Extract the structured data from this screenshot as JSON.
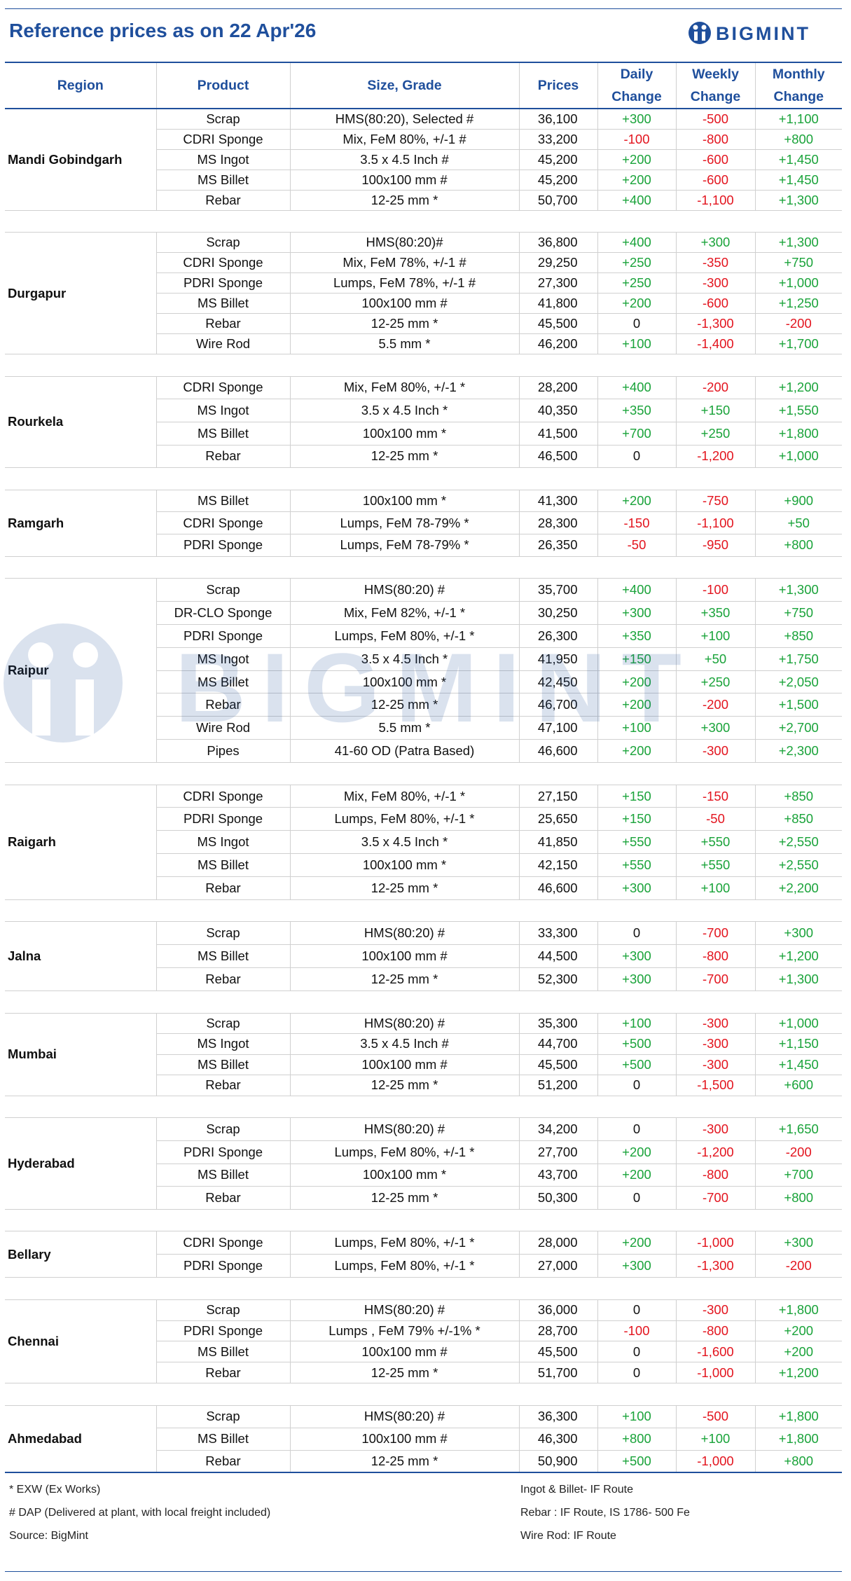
{
  "header": {
    "title": "Reference prices as on 22 Apr'26",
    "logo": "BIGMINT"
  },
  "table": {
    "columns": [
      "Region",
      "Product",
      "Size, Grade",
      "Prices",
      "Daily Change",
      "Weekly Change",
      "Monthly Change"
    ],
    "groups": [
      {
        "region": "Mandi Gobindgarh",
        "rows": [
          [
            "Scrap",
            "HMS(80:20), Selected #",
            "36,100",
            "+300",
            "-500",
            "+1,100"
          ],
          [
            "CDRI Sponge",
            "Mix, FeM 80%, +/-1 #",
            "33,200",
            "-100",
            "-800",
            "+800"
          ],
          [
            "MS Ingot",
            "3.5 x 4.5 Inch #",
            "45,200",
            "+200",
            "-600",
            "+1,450"
          ],
          [
            "MS Billet",
            "100x100 mm #",
            "45,200",
            "+200",
            "-600",
            "+1,450"
          ],
          [
            "Rebar",
            "12-25 mm *",
            "50,700",
            "+400",
            "-1,100",
            "+1,300"
          ]
        ]
      },
      {
        "region": "Durgapur",
        "rows": [
          [
            "Scrap",
            "HMS(80:20)#",
            "36,800",
            "+400",
            "+300",
            "+1,300"
          ],
          [
            "CDRI Sponge",
            "Mix, FeM 78%, +/-1 #",
            "29,250",
            "+250",
            "-350",
            "+750"
          ],
          [
            "PDRI Sponge",
            "Lumps, FeM 78%, +/-1 #",
            "27,300",
            "+250",
            "-300",
            "+1,000"
          ],
          [
            "MS Billet",
            "100x100 mm #",
            "41,800",
            "+200",
            "-600",
            "+1,250"
          ],
          [
            "Rebar",
            "12-25 mm *",
            "45,500",
            "0",
            "-1,300",
            "-200"
          ],
          [
            "Wire Rod",
            "5.5 mm *",
            "46,200",
            "+100",
            "-1,400",
            "+1,700"
          ]
        ]
      },
      {
        "region": "Rourkela",
        "rows": [
          [
            "CDRI Sponge",
            "Mix, FeM 80%, +/-1 *",
            "28,200",
            "+400",
            "-200",
            "+1,200"
          ],
          [
            "MS Ingot",
            "3.5 x 4.5 Inch *",
            "40,350",
            "+350",
            "+150",
            "+1,550"
          ],
          [
            "MS Billet",
            "100x100 mm *",
            "41,500",
            "+700",
            "+250",
            "+1,800"
          ],
          [
            "Rebar",
            "12-25 mm *",
            "46,500",
            "0",
            "-1,200",
            "+1,000"
          ]
        ]
      },
      {
        "region": "Ramgarh",
        "rows": [
          [
            "MS Billet",
            "100x100 mm *",
            "41,300",
            "+200",
            "-750",
            "+900"
          ],
          [
            "CDRI Sponge",
            "Lumps, FeM 78-79% *",
            "28,300",
            "-150",
            "-1,100",
            "+50"
          ],
          [
            "PDRI Sponge",
            "Lumps, FeM 78-79% *",
            "26,350",
            "-50",
            "-950",
            "+800"
          ]
        ]
      },
      {
        "region": "Raipur",
        "rows": [
          [
            "Scrap",
            "HMS(80:20) #",
            "35,700",
            "+400",
            "-100",
            "+1,300"
          ],
          [
            "DR-CLO Sponge",
            "Mix, FeM 82%, +/-1 *",
            "30,250",
            "+300",
            "+350",
            "+750"
          ],
          [
            "PDRI Sponge",
            "Lumps, FeM 80%, +/-1 *",
            "26,300",
            "+350",
            "+100",
            "+850"
          ],
          [
            "MS Ingot",
            "3.5 x 4.5 Inch *",
            "41,950",
            "+150",
            "+50",
            "+1,750"
          ],
          [
            "MS Billet",
            "100x100 mm *",
            "42,450",
            "+200",
            "+250",
            "+2,050"
          ],
          [
            "Rebar",
            "12-25 mm *",
            "46,700",
            "+200",
            "-200",
            "+1,500"
          ],
          [
            "Wire Rod",
            "5.5 mm *",
            "47,100",
            "+100",
            "+300",
            "+2,700"
          ],
          [
            "Pipes",
            "41-60 OD (Patra Based)",
            "46,600",
            "+200",
            "-300",
            "+2,300"
          ]
        ]
      },
      {
        "region": "Raigarh",
        "rows": [
          [
            "CDRI Sponge",
            "Mix, FeM 80%, +/-1 *",
            "27,150",
            "+150",
            "-150",
            "+850"
          ],
          [
            "PDRI Sponge",
            "Lumps, FeM 80%, +/-1 *",
            "25,650",
            "+150",
            "-50",
            "+850"
          ],
          [
            "MS Ingot",
            "3.5 x 4.5 Inch *",
            "41,850",
            "+550",
            "+550",
            "+2,550"
          ],
          [
            "MS Billet",
            "100x100 mm *",
            "42,150",
            "+550",
            "+550",
            "+2,550"
          ],
          [
            "Rebar",
            "12-25 mm *",
            "46,600",
            "+300",
            "+100",
            "+2,200"
          ]
        ]
      },
      {
        "region": "Jalna",
        "rows": [
          [
            "Scrap",
            "HMS(80:20) #",
            "33,300",
            "0",
            "-700",
            "+300"
          ],
          [
            "MS Billet",
            "100x100 mm #",
            "44,500",
            "+300",
            "-800",
            "+1,200"
          ],
          [
            "Rebar",
            "12-25 mm *",
            "52,300",
            "+300",
            "-700",
            "+1,300"
          ]
        ]
      },
      {
        "region": "Mumbai",
        "rows": [
          [
            "Scrap",
            "HMS(80:20) #",
            "35,300",
            "+100",
            "-300",
            "+1,000"
          ],
          [
            "MS Ingot",
            "3.5 x 4.5 Inch #",
            "44,700",
            "+500",
            "-300",
            "+1,150"
          ],
          [
            "MS Billet",
            "100x100 mm #",
            "45,500",
            "+500",
            "-300",
            "+1,450"
          ],
          [
            "Rebar",
            "12-25 mm *",
            "51,200",
            "0",
            "-1,500",
            "+600"
          ]
        ]
      },
      {
        "region": "Hyderabad",
        "rows": [
          [
            "Scrap",
            "HMS(80:20) #",
            "34,200",
            "0",
            "-300",
            "+1,650"
          ],
          [
            "PDRI Sponge",
            "Lumps, FeM 80%, +/-1 *",
            "27,700",
            "+200",
            "-1,200",
            "-200"
          ],
          [
            "MS Billet",
            "100x100 mm *",
            "43,700",
            "+200",
            "-800",
            "+700"
          ],
          [
            "Rebar",
            "12-25 mm *",
            "50,300",
            "0",
            "-700",
            "+800"
          ]
        ]
      },
      {
        "region": "Bellary",
        "rows": [
          [
            "CDRI Sponge",
            "Lumps, FeM 80%, +/-1 *",
            "28,000",
            "+200",
            "-1,000",
            "+300"
          ],
          [
            "PDRI Sponge",
            "Lumps, FeM 80%, +/-1 *",
            "27,000",
            "+300",
            "-1,300",
            "-200"
          ]
        ]
      },
      {
        "region": "Chennai",
        "rows": [
          [
            "Scrap",
            "HMS(80:20) #",
            "36,000",
            "0",
            "-300",
            "+1,800"
          ],
          [
            "PDRI Sponge",
            "Lumps , FeM 79% +/-1% *",
            "28,700",
            "-100",
            "-800",
            "+200"
          ],
          [
            "MS Billet",
            "100x100 mm  #",
            "45,500",
            "0",
            "-1,600",
            "+200"
          ],
          [
            "Rebar",
            "12-25 mm *",
            "51,700",
            "0",
            "-1,000",
            "+1,200"
          ]
        ]
      },
      {
        "region": "Ahmedabad",
        "rows": [
          [
            "Scrap",
            "HMS(80:20) #",
            "36,300",
            "+100",
            "-500",
            "+1,800"
          ],
          [
            "MS Billet",
            "100x100 mm  #",
            "46,300",
            "+800",
            "+100",
            "+1,800"
          ],
          [
            "Rebar",
            "12-25 mm *",
            "50,900",
            "+500",
            "-1,000",
            "+800"
          ]
        ]
      }
    ]
  },
  "footer": {
    "left": [
      "* EXW (Ex Works)",
      "# DAP (Delivered at plant, with local freight included)",
      "Source: BigMint"
    ],
    "right": [
      "Ingot & Billet- IF Route",
      "Rebar : IF Route, IS 1786- 500 Fe",
      "Wire Rod: IF Route"
    ]
  }
}
